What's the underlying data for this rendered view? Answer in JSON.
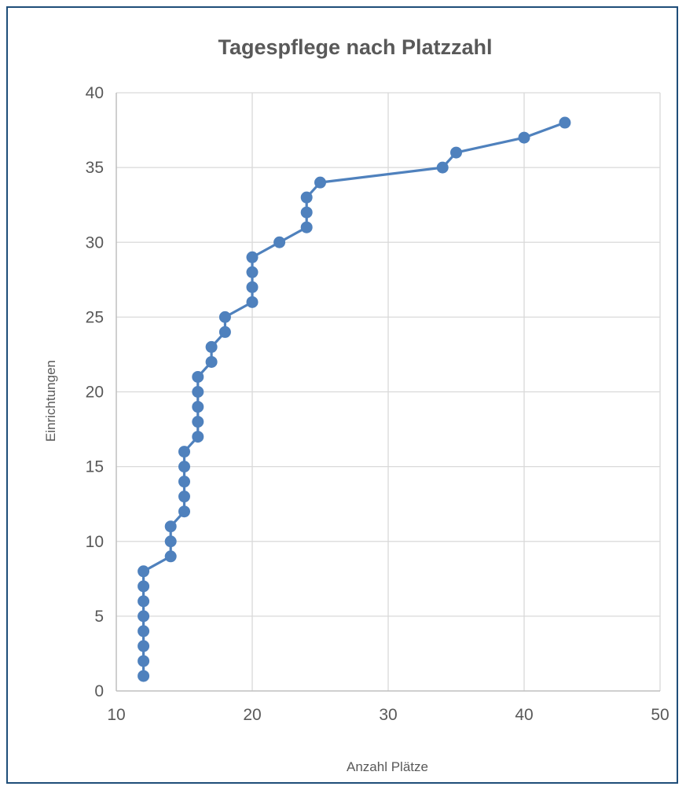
{
  "chart_data": {
    "type": "line",
    "title": "Tagespflege nach Platzzahl",
    "xlabel": "Anzahl Plätze",
    "ylabel": "Einrichtungen",
    "xlim": [
      10,
      50
    ],
    "ylim": [
      0,
      40
    ],
    "xticks": [
      "10",
      "20",
      "30",
      "40",
      "50"
    ],
    "yticks": [
      "0",
      "5",
      "10",
      "15",
      "20",
      "25",
      "30",
      "35",
      "40"
    ],
    "grid": true,
    "legend": "none",
    "series": [
      {
        "color": "#4f81bd",
        "marker": "circle",
        "points": [
          {
            "x": 12,
            "y": 1
          },
          {
            "x": 12,
            "y": 2
          },
          {
            "x": 12,
            "y": 3
          },
          {
            "x": 12,
            "y": 4
          },
          {
            "x": 12,
            "y": 5
          },
          {
            "x": 12,
            "y": 6
          },
          {
            "x": 12,
            "y": 7
          },
          {
            "x": 12,
            "y": 8
          },
          {
            "x": 14,
            "y": 9
          },
          {
            "x": 14,
            "y": 10
          },
          {
            "x": 14,
            "y": 11
          },
          {
            "x": 15,
            "y": 12
          },
          {
            "x": 15,
            "y": 13
          },
          {
            "x": 15,
            "y": 14
          },
          {
            "x": 15,
            "y": 15
          },
          {
            "x": 15,
            "y": 16
          },
          {
            "x": 16,
            "y": 17
          },
          {
            "x": 16,
            "y": 18
          },
          {
            "x": 16,
            "y": 19
          },
          {
            "x": 16,
            "y": 20
          },
          {
            "x": 16,
            "y": 21
          },
          {
            "x": 17,
            "y": 22
          },
          {
            "x": 17,
            "y": 23
          },
          {
            "x": 18,
            "y": 24
          },
          {
            "x": 18,
            "y": 25
          },
          {
            "x": 20,
            "y": 26
          },
          {
            "x": 20,
            "y": 27
          },
          {
            "x": 20,
            "y": 28
          },
          {
            "x": 20,
            "y": 29
          },
          {
            "x": 22,
            "y": 30
          },
          {
            "x": 24,
            "y": 31
          },
          {
            "x": 24,
            "y": 32
          },
          {
            "x": 24,
            "y": 33
          },
          {
            "x": 25,
            "y": 34
          },
          {
            "x": 34,
            "y": 35
          },
          {
            "x": 35,
            "y": 36
          },
          {
            "x": 40,
            "y": 37
          },
          {
            "x": 43,
            "y": 38
          }
        ]
      }
    ]
  },
  "colors": {
    "border": "#1f4e79",
    "grid": "#d9d9d9",
    "axis": "#bfbfbf",
    "text": "#595959"
  }
}
